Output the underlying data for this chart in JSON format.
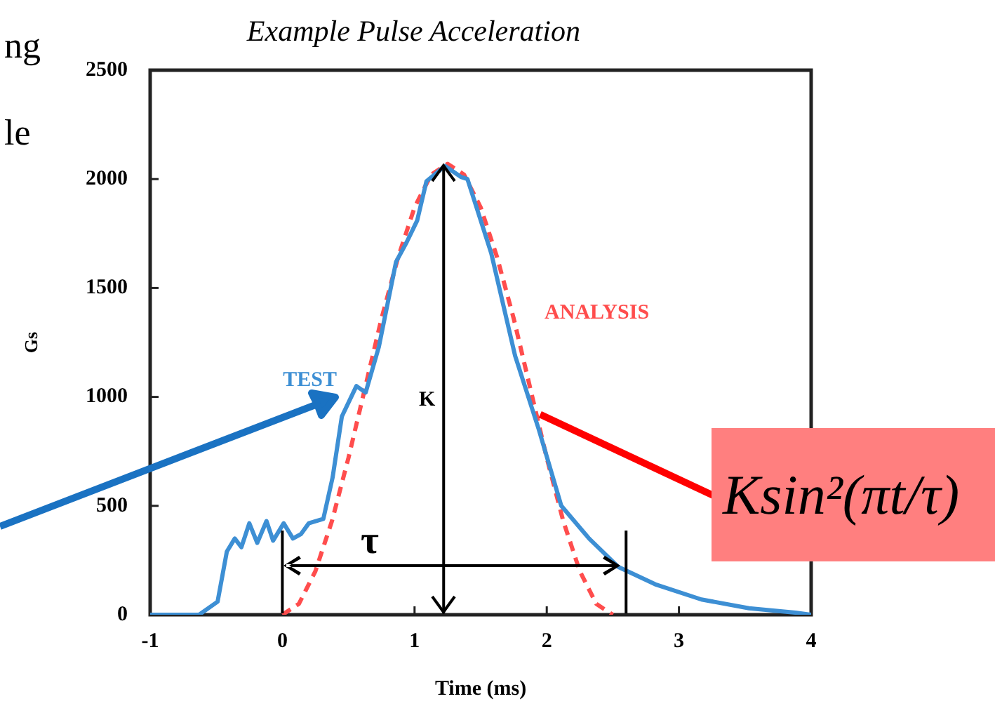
{
  "chart_data": {
    "type": "line",
    "title": "Example Pulse Acceleration",
    "xlabel": "Time (ms)",
    "ylabel": "Gs",
    "xlim": [
      -1,
      4
    ],
    "xticks": [
      -1,
      0,
      1,
      2,
      3,
      4
    ],
    "ylim": [
      0,
      2500
    ],
    "yticks": [
      0,
      500,
      1000,
      1500,
      2000,
      2500
    ],
    "marker": "none",
    "legend": false,
    "series": [
      {
        "name": "TEST",
        "color": "#3d8fd4",
        "line_style": "solid",
        "x": [
          -1,
          -0.63,
          -0.49,
          -0.42,
          -0.36,
          -0.31,
          -0.25,
          -0.19,
          -0.12,
          -0.07,
          0.01,
          0.08,
          0.14,
          0.2,
          0.31,
          0.38,
          0.45,
          0.56,
          0.63,
          0.73,
          0.86,
          0.94,
          1.02,
          1.09,
          1.23,
          1.35,
          1.4,
          1.58,
          1.76,
          1.94,
          2.11,
          2.32,
          2.54,
          2.82,
          3.17,
          3.53,
          3.88,
          4
        ],
        "values": [
          0,
          0,
          60,
          290,
          350,
          310,
          420,
          330,
          430,
          340,
          420,
          350,
          370,
          420,
          440,
          630,
          910,
          1050,
          1020,
          1230,
          1620,
          1710,
          1810,
          1990,
          2060,
          2010,
          2000,
          1660,
          1190,
          850,
          500,
          350,
          220,
          140,
          70,
          30,
          10,
          0
        ]
      },
      {
        "name": "ANALYSIS",
        "color": "#ff4d4d",
        "line_style": "dashed",
        "x": [
          0,
          0.125,
          0.25,
          0.375,
          0.5,
          0.625,
          0.75,
          0.875,
          1,
          1.125,
          1.25,
          1.375,
          1.5,
          1.625,
          1.75,
          1.875,
          2,
          2.125,
          2.25,
          2.375,
          2.5
        ],
        "values": [
          0,
          50,
          200,
          430,
          720,
          1040,
          1360,
          1640,
          1870,
          2020,
          2070,
          2020,
          1870,
          1640,
          1360,
          1040,
          720,
          430,
          200,
          50,
          0
        ]
      }
    ],
    "ref_lines": [
      {
        "axis": "x",
        "value": 1.22,
        "label": "K",
        "color": "#000000"
      },
      {
        "axis": "x",
        "value": 0,
        "color": "#000000"
      },
      {
        "axis": "x",
        "value": 2.6,
        "color": "#000000"
      }
    ],
    "annotations": [
      "ng",
      "le",
      "τ",
      {
        "text": "Ksin²(πt/τ)",
        "x": 1.95,
        "y": 920
      }
    ]
  }
}
